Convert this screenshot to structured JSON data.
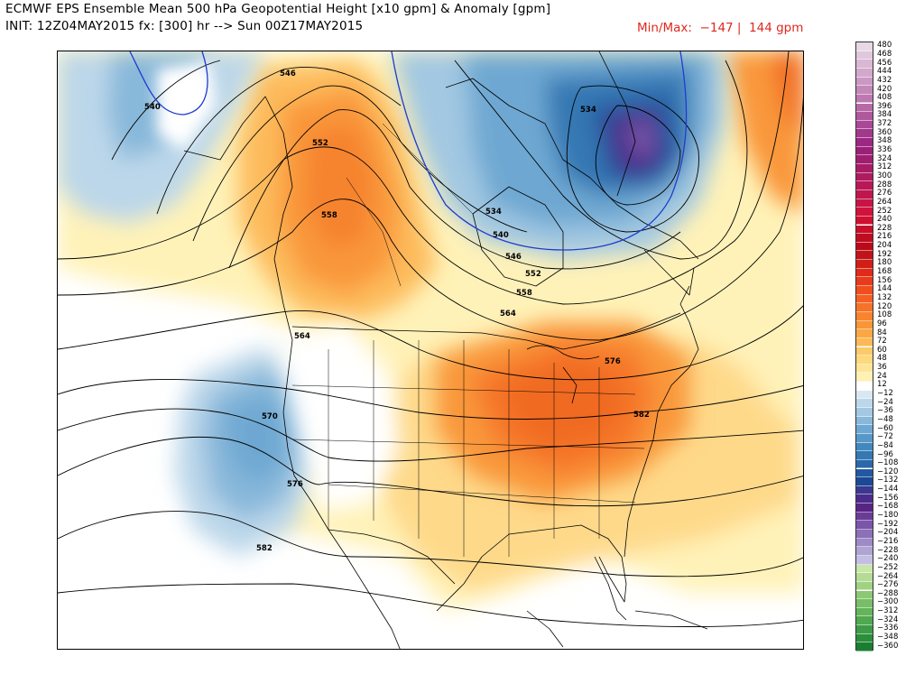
{
  "header": {
    "title": "ECMWF EPS Ensemble Mean 500 hPa Geopotential Height [x10 gpm] & Anomaly [gpm]",
    "init_line": "INIT: 12Z04MAY2015 fx: [300] hr --> Sun 00Z17MAY2015",
    "minmax": "Min/Max:  −147 |  144 gpm"
  },
  "map": {
    "contour_labels": [
      "540",
      "546",
      "552",
      "558",
      "564",
      "570",
      "576",
      "582",
      "534",
      "534",
      "540",
      "546",
      "552",
      "558",
      "564",
      "576",
      "582",
      "570",
      "576",
      "582"
    ],
    "anomaly_features": {
      "positive_centers": [
        "pacific-northwest-ridge",
        "eastern-us-ridge",
        "far-northeast-ridge"
      ],
      "negative_centers": [
        "greenland-baffin-trough",
        "alaska-trough",
        "california-cutoff-low"
      ]
    }
  },
  "colorbar": {
    "labels": [
      "480",
      "468",
      "456",
      "444",
      "432",
      "420",
      "408",
      "396",
      "384",
      "372",
      "360",
      "348",
      "336",
      "324",
      "312",
      "300",
      "288",
      "276",
      "264",
      "252",
      "240",
      "228",
      "216",
      "204",
      "192",
      "180",
      "168",
      "156",
      "144",
      "132",
      "120",
      "108",
      "96",
      "84",
      "72",
      "60",
      "48",
      "36",
      "24",
      "12",
      "−12",
      "−24",
      "−36",
      "−48",
      "−60",
      "−72",
      "−84",
      "−96",
      "−108",
      "−120",
      "−132",
      "−144",
      "−156",
      "−168",
      "−180",
      "−192",
      "−204",
      "−216",
      "−228",
      "−240",
      "−252",
      "−264",
      "−276",
      "−288",
      "−300",
      "−312",
      "−324",
      "−336",
      "−348",
      "−360"
    ],
    "colors": [
      "#e8d8e6",
      "#e0c8dc",
      "#dab8d4",
      "#d4a8cc",
      "#cc98c2",
      "#c488b8",
      "#be78b0",
      "#b868a6",
      "#b0589e",
      "#a84896",
      "#a2388c",
      "#9c2884",
      "#9a2078",
      "#a01e70",
      "#a81c66",
      "#b01a5e",
      "#b81856",
      "#c0164e",
      "#c81444",
      "#d0123c",
      "#d01030",
      "#c80e28",
      "#c00c20",
      "#b80a1a",
      "#c01418",
      "#d01e18",
      "#e02a1a",
      "#ea3a1c",
      "#f04e1e",
      "#f46022",
      "#f67228",
      "#f8842e",
      "#fa9636",
      "#fba844",
      "#fcba54",
      "#fdca68",
      "#fed87e",
      "#fee596",
      "#fff0b4",
      "#ffffff",
      "#d8e8f2",
      "#bcd7ea",
      "#a2c8e2",
      "#88b8da",
      "#6ea8d2",
      "#5898c8",
      "#4288be",
      "#3478b4",
      "#2a68aa",
      "#2258a0",
      "#1c4896",
      "#3a3890",
      "#4a2c8a",
      "#582486",
      "#6a3c98",
      "#7a56a8",
      "#8c70b8",
      "#9e8ac6",
      "#b0a4d4",
      "#c4bee2",
      "#c8e6a8",
      "#b4dc96",
      "#a0d284",
      "#8cc874",
      "#78be66",
      "#64b45a",
      "#50a850",
      "#3c9c46",
      "#2a8e3c",
      "#1a7e32"
    ]
  }
}
